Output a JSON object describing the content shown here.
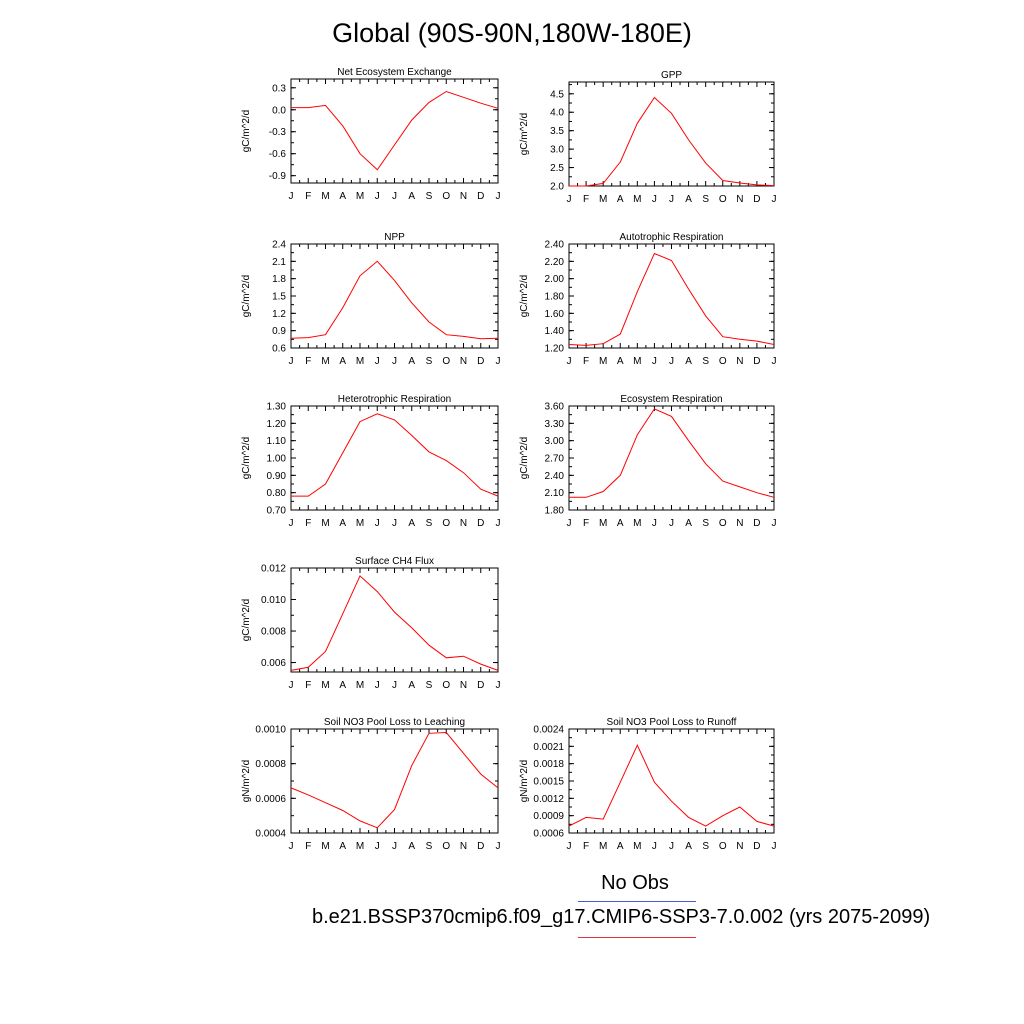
{
  "title": "Global (90S-90N,180W-180E)",
  "months": [
    "J",
    "F",
    "M",
    "A",
    "M",
    "J",
    "J",
    "A",
    "S",
    "O",
    "N",
    "D",
    "J"
  ],
  "series_color": "#ff0000",
  "legend": {
    "obs_label": "No Obs",
    "obs_color": "#4a57d6",
    "run_label": "b.e21.BSSP370cmip6.f09_g17.CMIP6-SSP3-7.0.002 (yrs 2075-2099)",
    "run_color": "#e0323a"
  },
  "chart_data": [
    {
      "type": "line",
      "title": "Net Ecosystem Exchange",
      "ylabel": "gC/m^2/d",
      "categories": [
        "J",
        "F",
        "M",
        "A",
        "M",
        "J",
        "J",
        "A",
        "S",
        "O",
        "N",
        "D",
        "J"
      ],
      "ylim": [
        -1.0,
        0.42
      ],
      "yticks": [
        "0.3",
        "0.0",
        "-0.3",
        "-0.6",
        "-0.9"
      ],
      "ytick_values": [
        0.3,
        0.0,
        -0.3,
        -0.6,
        -0.9
      ],
      "values": [
        0.03,
        0.03,
        0.06,
        -0.22,
        -0.6,
        -0.82,
        -0.48,
        -0.14,
        0.1,
        0.25,
        0.17,
        0.09,
        0.02
      ]
    },
    {
      "type": "line",
      "title": "GPP",
      "ylabel": "gC/m^2/d",
      "categories": [
        "J",
        "F",
        "M",
        "A",
        "M",
        "J",
        "J",
        "A",
        "S",
        "O",
        "N",
        "D",
        "J"
      ],
      "ylim": [
        2.0,
        4.82
      ],
      "yticks": [
        "4.5",
        "4.0",
        "3.5",
        "3.0",
        "2.5",
        "2.0"
      ],
      "ytick_values": [
        4.5,
        4.0,
        3.5,
        3.0,
        2.5,
        2.0
      ],
      "values": [
        2.0,
        2.0,
        2.07,
        2.65,
        3.7,
        4.4,
        3.97,
        3.25,
        2.62,
        2.15,
        2.08,
        2.03,
        2.01
      ]
    },
    {
      "type": "line",
      "title": "NPP",
      "ylabel": "gC/m^2/d",
      "categories": [
        "J",
        "F",
        "M",
        "A",
        "M",
        "J",
        "J",
        "A",
        "S",
        "O",
        "N",
        "D",
        "J"
      ],
      "ylim": [
        0.6,
        2.4
      ],
      "yticks": [
        "2.4",
        "2.1",
        "1.8",
        "1.5",
        "1.2",
        "0.9",
        "0.6"
      ],
      "ytick_values": [
        2.4,
        2.1,
        1.8,
        1.5,
        1.2,
        0.9,
        0.6
      ],
      "values": [
        0.77,
        0.78,
        0.83,
        1.3,
        1.85,
        2.1,
        1.77,
        1.38,
        1.05,
        0.83,
        0.8,
        0.76,
        0.77
      ]
    },
    {
      "type": "line",
      "title": "Autotrophic Respiration",
      "ylabel": "gC/m^2/d",
      "categories": [
        "J",
        "F",
        "M",
        "A",
        "M",
        "J",
        "J",
        "A",
        "S",
        "O",
        "N",
        "D",
        "J"
      ],
      "ylim": [
        1.2,
        2.4
      ],
      "yticks": [
        "2.40",
        "2.20",
        "2.00",
        "1.80",
        "1.60",
        "1.40",
        "1.20"
      ],
      "ytick_values": [
        2.4,
        2.2,
        2.0,
        1.8,
        1.6,
        1.4,
        1.2
      ],
      "values": [
        1.24,
        1.23,
        1.25,
        1.36,
        1.85,
        2.29,
        2.21,
        1.88,
        1.57,
        1.33,
        1.3,
        1.28,
        1.24
      ]
    },
    {
      "type": "line",
      "title": "Heterotrophic Respiration",
      "ylabel": "gC/m^2/d",
      "categories": [
        "J",
        "F",
        "M",
        "A",
        "M",
        "J",
        "J",
        "A",
        "S",
        "O",
        "N",
        "D",
        "J"
      ],
      "ylim": [
        0.7,
        1.3
      ],
      "yticks": [
        "1.30",
        "1.20",
        "1.10",
        "1.00",
        "0.90",
        "0.80",
        "0.70"
      ],
      "ytick_values": [
        1.3,
        1.2,
        1.1,
        1.0,
        0.9,
        0.8,
        0.7
      ],
      "values": [
        0.78,
        0.78,
        0.85,
        1.03,
        1.21,
        1.255,
        1.22,
        1.13,
        1.035,
        0.985,
        0.915,
        0.82,
        0.78
      ]
    },
    {
      "type": "line",
      "title": "Ecosystem Respiration",
      "ylabel": "gC/m^2/d",
      "categories": [
        "J",
        "F",
        "M",
        "A",
        "M",
        "J",
        "J",
        "A",
        "S",
        "O",
        "N",
        "D",
        "J"
      ],
      "ylim": [
        1.8,
        3.6
      ],
      "yticks": [
        "3.60",
        "3.30",
        "3.00",
        "2.70",
        "2.40",
        "2.10",
        "1.80"
      ],
      "ytick_values": [
        3.6,
        3.3,
        3.0,
        2.7,
        2.4,
        2.1,
        1.8
      ],
      "values": [
        2.02,
        2.02,
        2.12,
        2.4,
        3.1,
        3.55,
        3.42,
        3.0,
        2.6,
        2.3,
        2.2,
        2.1,
        2.02
      ]
    },
    {
      "type": "line",
      "title": "Surface CH4 Flux",
      "ylabel": "gC/m^2/d",
      "categories": [
        "J",
        "F",
        "M",
        "A",
        "M",
        "J",
        "J",
        "A",
        "S",
        "O",
        "N",
        "D",
        "J"
      ],
      "ylim": [
        0.0054,
        0.012
      ],
      "yticks": [
        "0.012",
        "0.010",
        "0.008",
        "0.006"
      ],
      "ytick_values": [
        0.012,
        0.01,
        0.008,
        0.006
      ],
      "values": [
        0.0055,
        0.0057,
        0.0067,
        0.0091,
        0.0115,
        0.0105,
        0.0092,
        0.0082,
        0.0071,
        0.0063,
        0.0064,
        0.0059,
        0.0055
      ]
    },
    {
      "type": "line",
      "title": "Soil NO3 Pool Loss to Leaching",
      "ylabel": "gN/m^2/d",
      "categories": [
        "J",
        "F",
        "M",
        "A",
        "M",
        "J",
        "J",
        "A",
        "S",
        "O",
        "N",
        "D",
        "J"
      ],
      "ylim": [
        0.0004,
        0.001
      ],
      "yticks": [
        "0.0010",
        "0.0008",
        "0.0006",
        "0.0004"
      ],
      "ytick_values": [
        0.001,
        0.0008,
        0.0006,
        0.0004
      ],
      "values": [
        0.00066,
        0.00062,
        0.000575,
        0.00053,
        0.00047,
        0.00043,
        0.000535,
        0.00079,
        0.000975,
        0.00098,
        0.00086,
        0.00074,
        0.00066
      ]
    },
    {
      "type": "line",
      "title": "Soil NO3 Pool Loss to Runoff",
      "ylabel": "gN/m^2/d",
      "categories": [
        "J",
        "F",
        "M",
        "A",
        "M",
        "J",
        "J",
        "A",
        "S",
        "O",
        "N",
        "D",
        "J"
      ],
      "ylim": [
        0.0006,
        0.0024
      ],
      "yticks": [
        "0.0024",
        "0.0021",
        "0.0018",
        "0.0015",
        "0.0012",
        "0.0009",
        "0.0006"
      ],
      "ytick_values": [
        0.0024,
        0.0021,
        0.0018,
        0.0015,
        0.0012,
        0.0009,
        0.0006
      ],
      "values": [
        0.00072,
        0.00087,
        0.00084,
        0.00148,
        0.00212,
        0.00148,
        0.00115,
        0.00087,
        0.00072,
        0.0009,
        0.00105,
        0.0008,
        0.00072
      ]
    }
  ]
}
